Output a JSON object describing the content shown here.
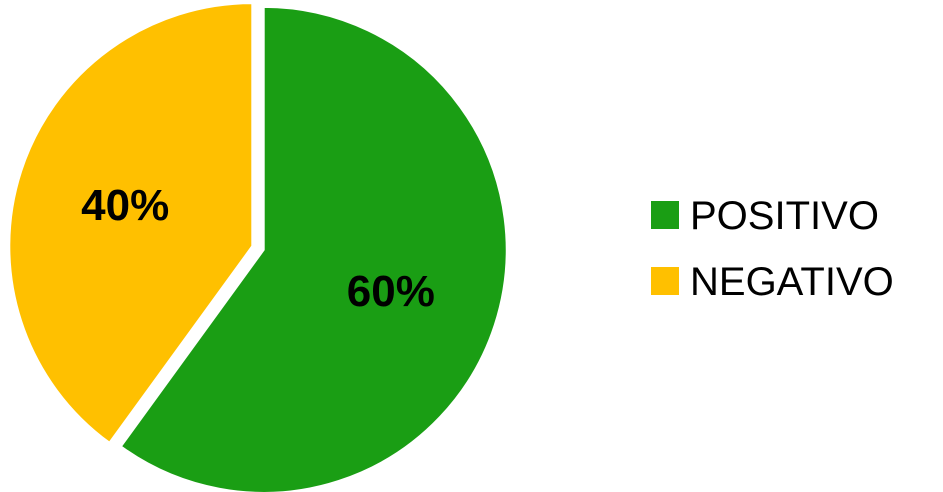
{
  "chart_data": {
    "type": "pie",
    "categories": [
      "POSITIVO",
      "NEGATIVO"
    ],
    "values": [
      60,
      40
    ],
    "data_labels": [
      "60%",
      "40%"
    ],
    "colors": [
      "#1A9E14",
      "#FFC000"
    ],
    "start_angle": "12 o'clock",
    "direction": "clockwise",
    "exploded": true,
    "legend": {
      "position": "right",
      "items": [
        {
          "label": "POSITIVO",
          "color": "#1A9E14"
        },
        {
          "label": "NEGATIVO",
          "color": "#FFC000"
        }
      ]
    }
  }
}
